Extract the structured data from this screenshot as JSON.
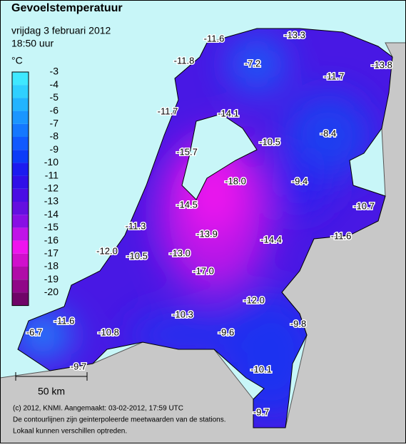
{
  "header": {
    "title": "Gevoelstemperatuur",
    "date": "vrijdag 3 februari 2012",
    "time": "18:50 uur"
  },
  "legend": {
    "unit": "°C",
    "scale": [
      {
        "value": -3,
        "color": "#3fe8ff"
      },
      {
        "value": -4,
        "color": "#2fd0ff"
      },
      {
        "value": -5,
        "color": "#22b4ff"
      },
      {
        "value": -6,
        "color": "#1a96ff"
      },
      {
        "value": -7,
        "color": "#1478ff"
      },
      {
        "value": -8,
        "color": "#105aff"
      },
      {
        "value": -9,
        "color": "#0c3cf8"
      },
      {
        "value": -10,
        "color": "#1c1cf0"
      },
      {
        "value": -11,
        "color": "#3010e8"
      },
      {
        "value": -12,
        "color": "#4a0ee4"
      },
      {
        "value": -13,
        "color": "#6410e0"
      },
      {
        "value": -14,
        "color": "#8810e4"
      },
      {
        "value": -15,
        "color": "#c014e8"
      },
      {
        "value": -16,
        "color": "#ee14ee"
      },
      {
        "value": -17,
        "color": "#d010cc"
      },
      {
        "value": -18,
        "color": "#b00ca8"
      },
      {
        "value": -19,
        "color": "#900888"
      },
      {
        "value": -20,
        "color": "#700468"
      }
    ]
  },
  "stations": [
    {
      "label": "-11.6"
    },
    {
      "label": "-13.3"
    },
    {
      "label": "-11.8"
    },
    {
      "label": "-7.2"
    },
    {
      "label": "-13.8"
    },
    {
      "label": "-11.7"
    },
    {
      "label": "-11.7"
    },
    {
      "label": "-14.1"
    },
    {
      "label": "-10.5"
    },
    {
      "label": "-8.4"
    },
    {
      "label": "-15.7"
    },
    {
      "label": "-18.0"
    },
    {
      "label": "-9.4"
    },
    {
      "label": "-10.7"
    },
    {
      "label": "-14.5"
    },
    {
      "label": "-11.3"
    },
    {
      "label": "-13.9"
    },
    {
      "label": "-14.4"
    },
    {
      "label": "-11.6"
    },
    {
      "label": "-12.0"
    },
    {
      "label": "-10.5"
    },
    {
      "label": "-13.0"
    },
    {
      "label": "-17.0"
    },
    {
      "label": "-12.0"
    },
    {
      "label": "-11.6"
    },
    {
      "label": "-10.3"
    },
    {
      "label": "-9.8"
    },
    {
      "label": "-6.7"
    },
    {
      "label": "-10.8"
    },
    {
      "label": "-9.6"
    },
    {
      "label": "-9.7"
    },
    {
      "label": "-10.1"
    },
    {
      "label": "-9.7"
    }
  ],
  "scale_bar": "50 km",
  "footer": [
    "(c) 2012, KNMI. Aangemaakt: 03-02-2012, 17:59 UTC",
    "De contourlijnen zijn geinterpoleerde meetwaarden van de stations.",
    "Lokaal kunnen verschillen optreden."
  ]
}
